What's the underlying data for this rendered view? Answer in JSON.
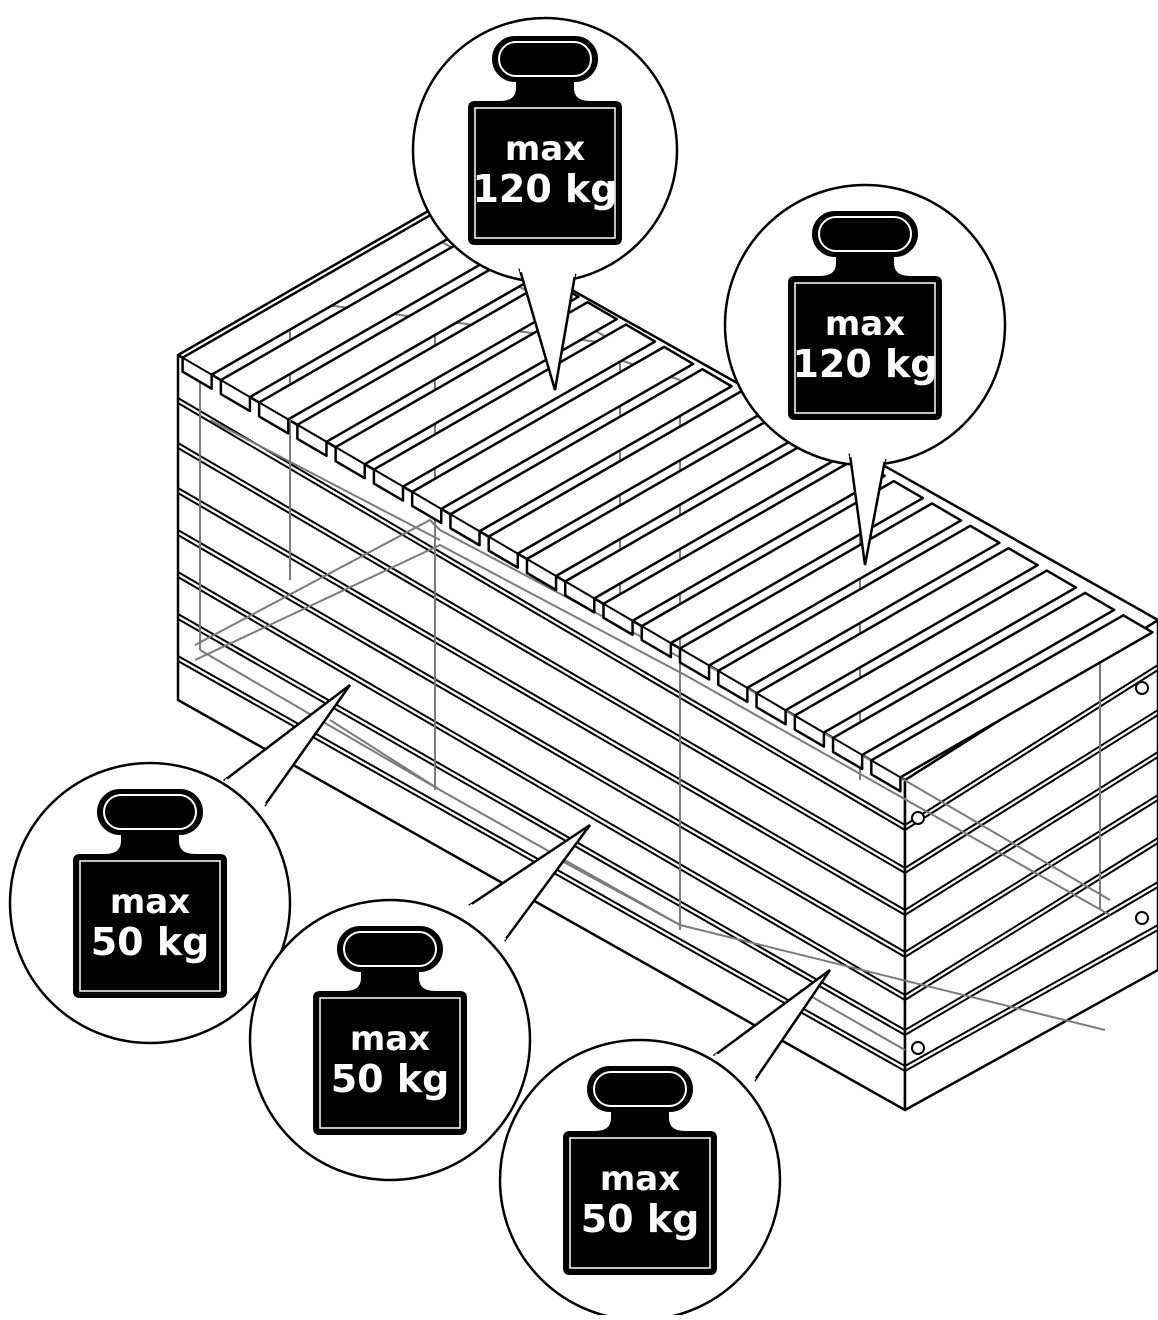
{
  "illustration": {
    "colors": {
      "line": "#000000",
      "fill": "#ffffff",
      "inner_frame": "#7a7a7a",
      "weight_fill": "#000000",
      "weight_text": "#ffffff"
    },
    "weights": [
      {
        "id": "lid-back",
        "label_line1": "max",
        "label_line2": "120 kg"
      },
      {
        "id": "lid-front",
        "label_line1": "max",
        "label_line2": "120 kg"
      },
      {
        "id": "shelf-left",
        "label_line1": "max",
        "label_line2": "50 kg"
      },
      {
        "id": "shelf-middle",
        "label_line1": "max",
        "label_line2": "50 kg"
      },
      {
        "id": "shelf-right",
        "label_line1": "max",
        "label_line2": "50 kg"
      }
    ]
  }
}
